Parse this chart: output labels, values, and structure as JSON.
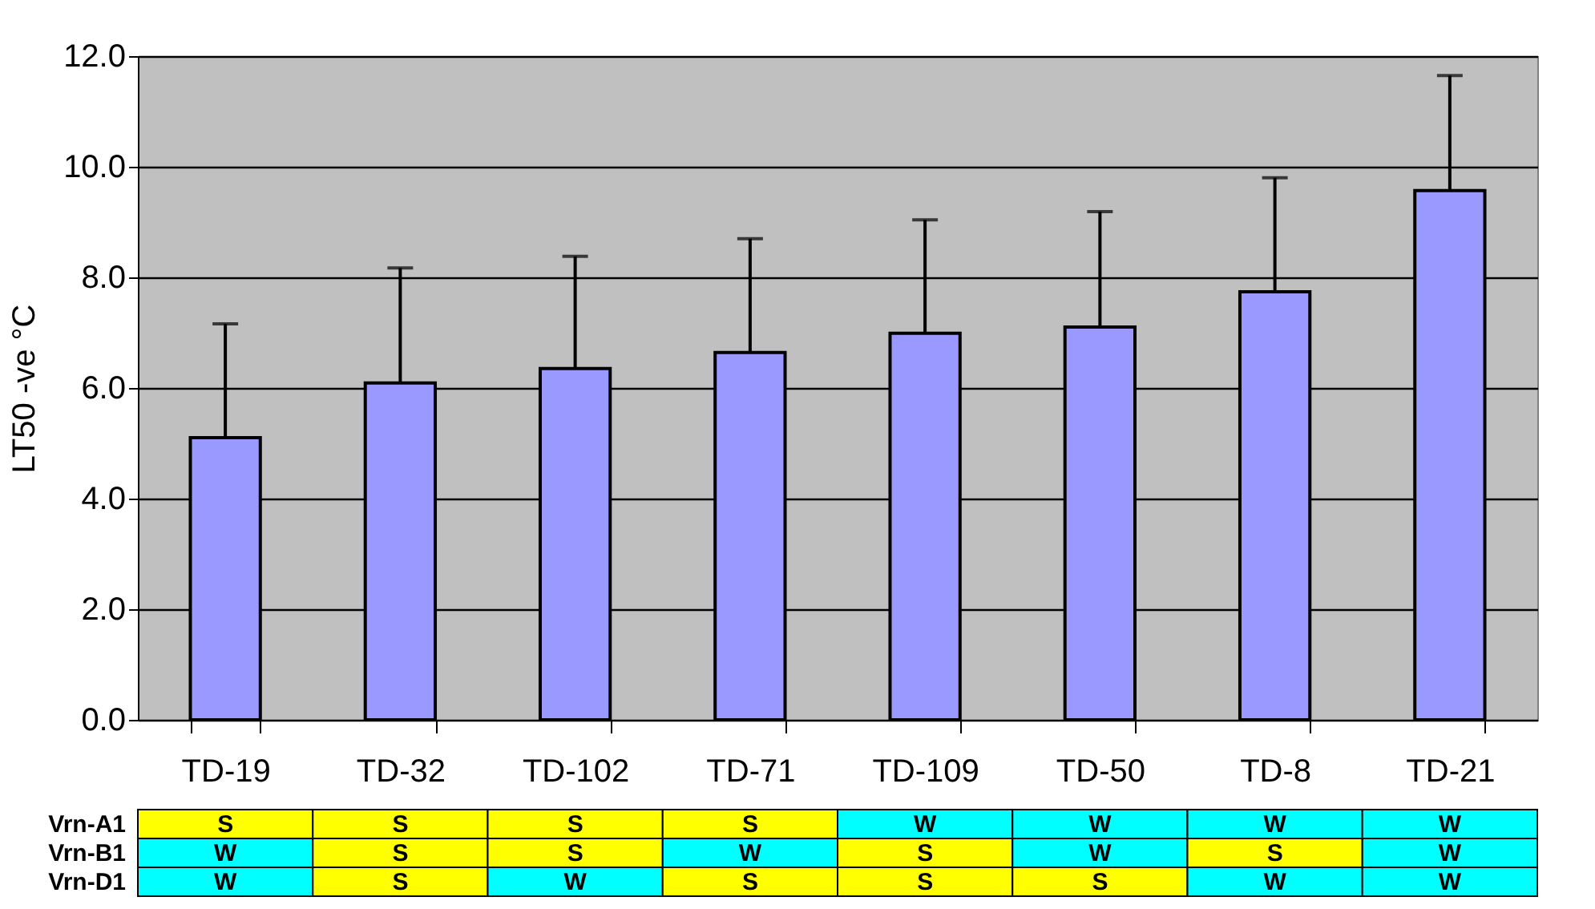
{
  "chart_data": [
    {
      "type": "bar",
      "ylabel": "LT50 -ve °C",
      "categories": [
        "TD-19",
        "TD-32",
        "TD-102",
        "TD-71",
        "TD-109",
        "TD-50",
        "TD-8",
        "TD-21"
      ],
      "values": [
        5.1,
        6.09,
        6.35,
        6.64,
        6.99,
        7.1,
        7.74,
        9.57
      ],
      "errors": [
        [
          5.1,
          7.16
        ],
        [
          6.09,
          8.17
        ],
        [
          6.35,
          8.38
        ],
        [
          6.64,
          8.7
        ],
        [
          6.99,
          9.04
        ],
        [
          7.1,
          9.19
        ],
        [
          7.74,
          9.8
        ],
        [
          9.57,
          11.65
        ]
      ],
      "color": "#9999ff",
      "ylim": [
        0,
        12
      ],
      "yticks": [
        {
          "value": 0,
          "label": "0.0"
        },
        {
          "value": 2,
          "label": "2.0"
        },
        {
          "value": 4,
          "label": "4.0"
        },
        {
          "value": 6,
          "label": "6.0"
        },
        {
          "value": 8,
          "label": "8.0"
        },
        {
          "value": 10,
          "label": "10.0"
        },
        {
          "value": 12,
          "label": "12.0"
        }
      ],
      "grid": "y"
    },
    {
      "type": "other",
      "categories": [
        null,
        null,
        null,
        null,
        null,
        null,
        null,
        null
      ],
      "y_categories": [
        "Vrn-A1",
        "Vrn-B1",
        "Vrn-D1"
      ],
      "cell_labels": [
        [
          "S",
          "S",
          "S",
          "S",
          "W",
          "W",
          "W",
          "W"
        ],
        [
          "W",
          "S",
          "S",
          "W",
          "S",
          "W",
          "S",
          "W"
        ],
        [
          "W",
          "S",
          "W",
          "S",
          "S",
          "S",
          "W",
          "W"
        ]
      ],
      "colors": [
        "#ffff00",
        "#00ffff"
      ]
    }
  ]
}
